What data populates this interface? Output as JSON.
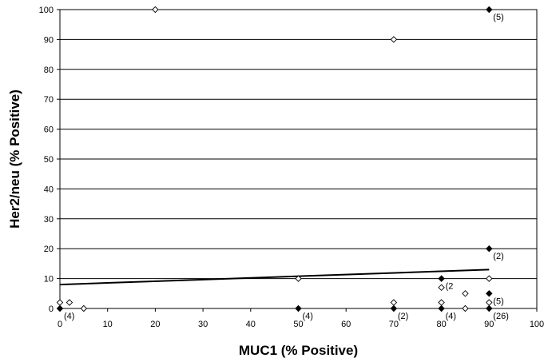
{
  "chart_data": {
    "type": "scatter",
    "title": "",
    "xlabel": "MUC1 (% Positive)",
    "ylabel": "Her2/neu (% Positive)",
    "xlim": [
      0,
      100
    ],
    "ylim": [
      0,
      100
    ],
    "x_ticks": [
      "0",
      "10",
      "20",
      "30",
      "40",
      "50",
      "60",
      "70",
      "80",
      "90",
      "100"
    ],
    "y_ticks": [
      "0",
      "10",
      "20",
      "30",
      "40",
      "50",
      "60",
      "70",
      "80",
      "90",
      "100"
    ],
    "grid": "horizontal",
    "legend": "none",
    "colors": {
      "filled": "#000000",
      "open": "#ffffff",
      "grid": "#000000"
    },
    "series": [
      {
        "marker": "filled-diamond",
        "points": [
          {
            "x": 0,
            "y": 0
          },
          {
            "x": 50,
            "y": 0
          },
          {
            "x": 70,
            "y": 0
          },
          {
            "x": 80,
            "y": 0
          },
          {
            "x": 90,
            "y": 0
          },
          {
            "x": 80,
            "y": 10
          },
          {
            "x": 90,
            "y": 5
          },
          {
            "x": 90,
            "y": 20
          },
          {
            "x": 90,
            "y": 100
          }
        ]
      },
      {
        "marker": "open-diamond",
        "points": [
          {
            "x": 0,
            "y": 2
          },
          {
            "x": 2,
            "y": 2
          },
          {
            "x": 5,
            "y": 0
          },
          {
            "x": 20,
            "y": 100
          },
          {
            "x": 50,
            "y": 10
          },
          {
            "x": 70,
            "y": 2
          },
          {
            "x": 70,
            "y": 90
          },
          {
            "x": 80,
            "y": 2
          },
          {
            "x": 80,
            "y": 7
          },
          {
            "x": 85,
            "y": 5
          },
          {
            "x": 85,
            "y": 0
          },
          {
            "x": 90,
            "y": 2
          },
          {
            "x": 90,
            "y": 10
          }
        ]
      }
    ],
    "trendline": {
      "x": [
        0,
        90
      ],
      "y": [
        8,
        13
      ]
    },
    "annotations": [
      {
        "text": "(4)",
        "x": 0,
        "y": 0
      },
      {
        "text": "(4)",
        "x": 50,
        "y": 0
      },
      {
        "text": "(2)",
        "x": 70,
        "y": 0
      },
      {
        "text": "(4)",
        "x": 80,
        "y": 0
      },
      {
        "text": "(26)",
        "x": 90,
        "y": 0
      },
      {
        "text": "(2",
        "x": 80,
        "y": 10
      },
      {
        "text": "(5)",
        "x": 90,
        "y": 5
      },
      {
        "text": "(2)",
        "x": 90,
        "y": 20
      },
      {
        "text": "(5)",
        "x": 90,
        "y": 100
      }
    ]
  }
}
